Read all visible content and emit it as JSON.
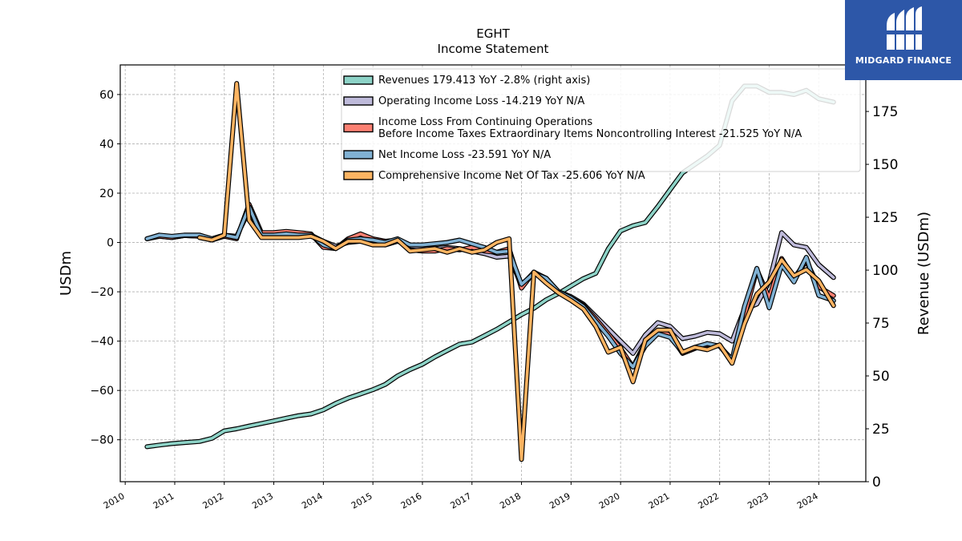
{
  "header": {
    "title": "EGHT",
    "subtitle": "Income Statement"
  },
  "logo": {
    "text": "MIDGARD FINANCE",
    "background": "#2d57a8"
  },
  "chart_data": {
    "type": "line",
    "title": "EGHT",
    "subtitle": "Income Statement",
    "ylabel": "USDm",
    "y2label": "Revenue (USDm)",
    "ylim": [
      -97,
      72
    ],
    "y2lim": [
      0,
      197
    ],
    "xlim": [
      2009.9,
      2024.95
    ],
    "x_ticks": [
      "2010",
      "2011",
      "2012",
      "2013",
      "2014",
      "2015",
      "2016",
      "2017",
      "2018",
      "2019",
      "2020",
      "2021",
      "2022",
      "2023",
      "2024"
    ],
    "y_ticks": [
      60,
      40,
      20,
      0,
      -20,
      -40,
      -60,
      -80
    ],
    "y2_ticks": [
      175,
      150,
      125,
      100,
      75,
      50,
      25,
      0
    ],
    "grid": true,
    "legend_position": "top-center",
    "series": [
      {
        "name": "Revenues  179.413 YoY -2.8% (right axis)",
        "color": "#8dd3c7",
        "axis": "right",
        "x": [
          2010.44,
          2010.69,
          2010.94,
          2011.19,
          2011.5,
          2011.75,
          2012.0,
          2012.25,
          2012.5,
          2012.75,
          2013.0,
          2013.25,
          2013.5,
          2013.75,
          2014.0,
          2014.25,
          2014.5,
          2014.75,
          2015.0,
          2015.25,
          2015.5,
          2015.75,
          2016.0,
          2016.25,
          2016.5,
          2016.75,
          2017.0,
          2017.25,
          2017.5,
          2017.75,
          2018.0,
          2018.25,
          2018.5,
          2018.75,
          2019.0,
          2019.25,
          2019.5,
          2019.75,
          2020.0,
          2020.25,
          2020.5,
          2020.75,
          2021.0,
          2021.25,
          2021.5,
          2021.75,
          2022.0,
          2022.25,
          2022.5,
          2022.75,
          2023.0,
          2023.25,
          2023.5,
          2023.75,
          2024.0,
          2024.3
        ],
        "values": [
          16.5,
          17.3,
          18.0,
          18.5,
          19.0,
          20.5,
          24.0,
          25.0,
          26.3,
          27.5,
          28.7,
          30.0,
          31.2,
          32.0,
          34.0,
          37.0,
          39.5,
          41.5,
          43.5,
          46.0,
          50.0,
          53.0,
          55.5,
          59.0,
          62.0,
          65.0,
          66.0,
          69.0,
          72.0,
          75.5,
          79.0,
          82.0,
          86.0,
          89.0,
          92.5,
          96.0,
          98.5,
          110.0,
          118.5,
          121.0,
          122.5,
          130.0,
          138.0,
          146.0,
          150.0,
          154.0,
          159.0,
          180.0,
          187.0,
          187.0,
          184.0,
          184.0,
          183.0,
          185.0,
          181.0,
          179.413
        ]
      },
      {
        "name": "Operating Income Loss  -14.219 YoY N/A",
        "color": "#bebada",
        "axis": "left",
        "x": [
          2010.44,
          2010.69,
          2010.94,
          2011.19,
          2011.5,
          2011.75,
          2012.0,
          2012.25,
          2012.5,
          2012.75,
          2013.0,
          2013.25,
          2013.5,
          2013.75,
          2014.0,
          2014.25,
          2014.5,
          2014.75,
          2015.0,
          2015.25,
          2015.5,
          2015.75,
          2016.0,
          2016.25,
          2016.5,
          2016.75,
          2017.0,
          2017.25,
          2017.5,
          2017.75,
          2018.0,
          2018.25,
          2018.5,
          2018.75,
          2019.0,
          2019.25,
          2019.5,
          2019.75,
          2020.0,
          2020.25,
          2020.5,
          2020.75,
          2021.0,
          2021.25,
          2021.5,
          2021.75,
          2022.0,
          2022.25,
          2022.5,
          2022.75,
          2023.0,
          2023.25,
          2023.5,
          2023.75,
          2024.0,
          2024.3
        ],
        "values": [
          1.5,
          2.5,
          2.0,
          2.8,
          2.5,
          1.0,
          3.0,
          2.5,
          13.0,
          3.5,
          3.5,
          3.5,
          3.0,
          3.0,
          0.5,
          -1.5,
          0.0,
          0.5,
          -0.5,
          -1.0,
          0.5,
          -1.5,
          -2.0,
          -2.5,
          -2.0,
          -2.5,
          -3.5,
          -4.5,
          -6.0,
          -5.5,
          -17.5,
          -12.0,
          -15.0,
          -20.0,
          -22.0,
          -25.0,
          -30.0,
          -35.0,
          -40.0,
          -45.0,
          -37.5,
          -32.5,
          -34.0,
          -39.0,
          -38.0,
          -36.5,
          -37.0,
          -40.0,
          -27.0,
          -25.0,
          -16.0,
          4.0,
          -1.0,
          -2.0,
          -9.0,
          -14.219
        ]
      },
      {
        "name": "Income Loss From Continuing Operations\nBefore Income Taxes Extraordinary Items Noncontrolling Interest  -21.525 YoY N/A",
        "color": "#fb8072",
        "axis": "left",
        "x": [
          2010.44,
          2010.69,
          2010.94,
          2011.19,
          2011.5,
          2011.75,
          2012.0,
          2012.25,
          2012.5,
          2012.75,
          2013.0,
          2013.25,
          2013.5,
          2013.75,
          2014.0,
          2014.25,
          2014.5,
          2014.75,
          2015.0,
          2015.25,
          2015.5,
          2015.75,
          2016.0,
          2016.25,
          2016.5,
          2016.75,
          2017.0,
          2017.25,
          2017.5,
          2017.75,
          2018.0,
          2018.25,
          2018.5,
          2018.75,
          2019.0,
          2019.25,
          2019.5,
          2019.75,
          2020.0,
          2020.25,
          2020.5,
          2020.75,
          2021.0,
          2021.25,
          2021.5,
          2021.75,
          2022.0,
          2022.25,
          2022.5,
          2022.75,
          2023.0,
          2023.25,
          2023.5,
          2023.75,
          2024.0,
          2024.3
        ],
        "values": [
          1.5,
          2.5,
          2.0,
          2.8,
          2.5,
          1.0,
          2.5,
          1.5,
          15.5,
          4.0,
          4.0,
          4.5,
          4.0,
          3.5,
          -2.0,
          -2.5,
          1.5,
          3.5,
          1.5,
          0.5,
          1.0,
          -3.0,
          -3.5,
          -3.5,
          -2.5,
          -3.0,
          -2.0,
          -3.5,
          -4.0,
          -2.5,
          -18.5,
          -12.0,
          -14.5,
          -20.0,
          -22.5,
          -25.5,
          -31.0,
          -37.0,
          -43.0,
          -50.5,
          -40.5,
          -35.5,
          -37.5,
          -45.0,
          -43.0,
          -41.5,
          -42.0,
          -48.0,
          -30.0,
          -11.0,
          -22.5,
          -6.5,
          -14.5,
          -7.5,
          -18.0,
          -21.525
        ]
      },
      {
        "name": "Net Income Loss  -23.591 YoY N/A",
        "color": "#80b1d3",
        "axis": "left",
        "x": [
          2010.44,
          2010.69,
          2010.94,
          2011.19,
          2011.5,
          2011.75,
          2012.0,
          2012.25,
          2012.5,
          2012.75,
          2013.0,
          2013.25,
          2013.5,
          2013.75,
          2014.0,
          2014.25,
          2014.5,
          2014.75,
          2015.0,
          2015.25,
          2015.5,
          2015.75,
          2016.0,
          2016.25,
          2016.5,
          2016.75,
          2017.0,
          2017.25,
          2017.5,
          2017.75,
          2018.0,
          2018.25,
          2018.5,
          2018.75,
          2019.0,
          2019.25,
          2019.5,
          2019.75,
          2020.0,
          2020.25,
          2020.5,
          2020.75,
          2021.0,
          2021.25,
          2021.5,
          2021.75,
          2022.0,
          2022.25,
          2022.5,
          2022.75,
          2023.0,
          2023.25,
          2023.5,
          2023.75,
          2024.0,
          2024.3
        ],
        "values": [
          1.5,
          3.0,
          2.5,
          3.0,
          3.0,
          1.5,
          3.0,
          2.0,
          14.5,
          3.0,
          3.0,
          3.5,
          3.0,
          3.0,
          -1.0,
          -2.5,
          1.0,
          1.5,
          1.0,
          0.0,
          1.5,
          -1.0,
          -1.0,
          -0.5,
          0.0,
          1.0,
          -0.5,
          -2.0,
          -4.0,
          -3.5,
          -17.0,
          -12.5,
          -14.5,
          -20.0,
          -22.5,
          -26.0,
          -32.0,
          -38.0,
          -45.0,
          -50.5,
          -42.0,
          -37.0,
          -38.5,
          -44.5,
          -42.5,
          -41.0,
          -42.0,
          -47.5,
          -26.0,
          -10.5,
          -26.5,
          -9.0,
          -16.0,
          -6.0,
          -21.5,
          -23.591
        ]
      },
      {
        "name": "Comprehensive Income Net Of Tax  -25.606 YoY N/A",
        "color": "#fdb462",
        "axis": "left",
        "x": [
          2011.5,
          2011.75,
          2012.0,
          2012.25,
          2012.5,
          2012.75,
          2013.0,
          2013.25,
          2013.5,
          2013.75,
          2014.0,
          2014.25,
          2014.5,
          2014.75,
          2015.0,
          2015.25,
          2015.5,
          2015.75,
          2016.0,
          2016.25,
          2016.5,
          2016.75,
          2017.0,
          2017.25,
          2017.5,
          2017.75,
          2018.0,
          2018.25,
          2018.5,
          2018.75,
          2019.0,
          2019.25,
          2019.5,
          2019.75,
          2020.0,
          2020.25,
          2020.5,
          2020.75,
          2021.0,
          2021.25,
          2021.5,
          2021.75,
          2022.0,
          2022.25,
          2022.5,
          2022.75,
          2023.0,
          2023.25,
          2023.5,
          2023.75,
          2024.0,
          2024.3
        ],
        "values": [
          2.0,
          1.0,
          3.0,
          64.5,
          9.0,
          2.0,
          2.0,
          2.0,
          2.0,
          2.5,
          0.5,
          -2.5,
          0.5,
          0.5,
          -1.0,
          -1.0,
          1.0,
          -3.5,
          -3.0,
          -2.5,
          -4.0,
          -2.5,
          -4.0,
          -3.0,
          0.0,
          1.5,
          -88.0,
          -12.0,
          -16.5,
          -20.5,
          -23.5,
          -27.0,
          -34.0,
          -44.5,
          -42.5,
          -56.5,
          -39.5,
          -35.5,
          -35.5,
          -44.5,
          -42.5,
          -43.5,
          -41.5,
          -49.0,
          -33.0,
          -21.0,
          -16.0,
          -7.0,
          -13.5,
          -11.0,
          -15.5,
          -25.606
        ]
      }
    ]
  }
}
